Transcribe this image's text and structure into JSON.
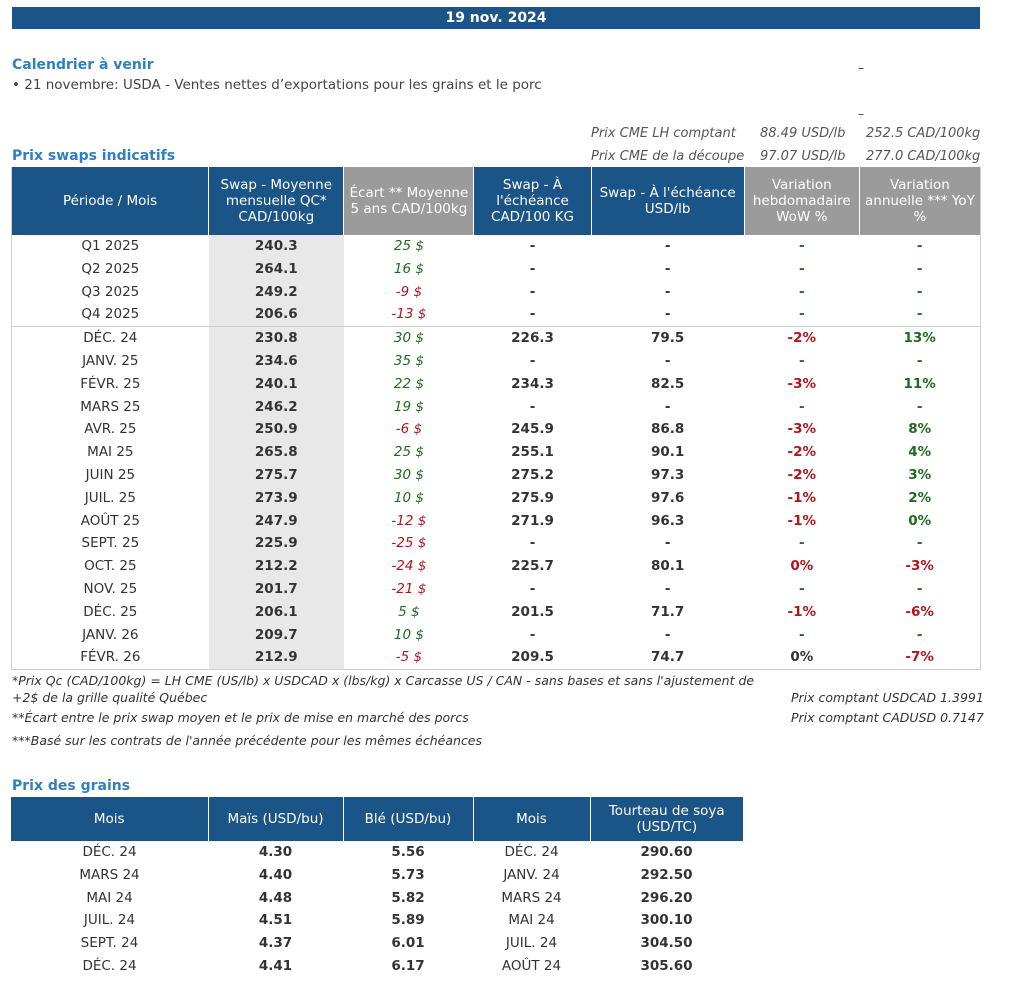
{
  "date": "19 nov. 2024",
  "calendar": {
    "title": "Calendrier à venir",
    "items": [
      "• 21 novembre: USDA - Ventes nettes d’exportations pour les grains et le porc"
    ],
    "dash1": "–",
    "dash2": "–"
  },
  "cme": {
    "rows": [
      {
        "label": "Prix CME LH comptant",
        "usd": "88.49 USD/lb",
        "cad": "252.5 CAD/100kg"
      },
      {
        "label": "Prix CME de la découpe",
        "usd": "97.07 USD/lb",
        "cad": "277.0 CAD/100kg"
      }
    ]
  },
  "swaps": {
    "title": "Prix swaps indicatifs",
    "headers": [
      "Période / Mois",
      "Swap - Moyenne mensuelle QC* CAD/100kg",
      "Écart ** Moyenne 5 ans CAD/100kg",
      "Swap - À l'échéance CAD/100 KG",
      "Swap - À l'échéance USD/lb",
      "Variation hebdomadaire WoW %",
      "Variation annuelle *** YoY %"
    ],
    "quarters": [
      {
        "period": "Q1 2025",
        "swap": "240.3",
        "ecart": "25 $",
        "ecart_sign": "pos",
        "cad": "-",
        "usd": "-",
        "wow": "-",
        "wow_sign": "pos",
        "yoy": "-",
        "yoy_sign": "pos"
      },
      {
        "period": "Q2 2025",
        "swap": "264.1",
        "ecart": "16 $",
        "ecart_sign": "pos",
        "cad": "-",
        "usd": "-",
        "wow": "-",
        "wow_sign": "pos",
        "yoy": "-",
        "yoy_sign": "pos"
      },
      {
        "period": "Q3 2025",
        "swap": "249.2",
        "ecart": "-9 $",
        "ecart_sign": "neg",
        "cad": "-",
        "usd": "-",
        "wow": "-",
        "wow_sign": "pos",
        "yoy": "-",
        "yoy_sign": "pos"
      },
      {
        "period": "Q4 2025",
        "swap": "206.6",
        "ecart": "-13 $",
        "ecart_sign": "neg",
        "cad": "-",
        "usd": "-",
        "wow": "-",
        "wow_sign": "pos",
        "yoy": "-",
        "yoy_sign": "pos"
      }
    ],
    "months": [
      {
        "period": "DÉC. 24",
        "swap": "230.8",
        "ecart": "30 $",
        "ecart_sign": "pos",
        "cad": "226.3",
        "usd": "79.5",
        "wow": "-2%",
        "wow_sign": "neg",
        "yoy": "13%",
        "yoy_sign": "pos"
      },
      {
        "period": "JANV. 25",
        "swap": "234.6",
        "ecart": "35 $",
        "ecart_sign": "pos",
        "cad": "-",
        "usd": "-",
        "wow": "-",
        "wow_sign": "pos",
        "yoy": "-",
        "yoy_sign": "pos"
      },
      {
        "period": "FÉVR. 25",
        "swap": "240.1",
        "ecart": "22 $",
        "ecart_sign": "pos",
        "cad": "234.3",
        "usd": "82.5",
        "wow": "-3%",
        "wow_sign": "neg",
        "yoy": "11%",
        "yoy_sign": "pos"
      },
      {
        "period": "MARS 25",
        "swap": "246.2",
        "ecart": "19 $",
        "ecart_sign": "pos",
        "cad": "-",
        "usd": "-",
        "wow": "-",
        "wow_sign": "pos",
        "yoy": "-",
        "yoy_sign": "pos"
      },
      {
        "period": "AVR. 25",
        "swap": "250.9",
        "ecart": "-6 $",
        "ecart_sign": "neg",
        "cad": "245.9",
        "usd": "86.8",
        "wow": "-3%",
        "wow_sign": "neg",
        "yoy": "8%",
        "yoy_sign": "pos"
      },
      {
        "period": "MAI 25",
        "swap": "265.8",
        "ecart": "25 $",
        "ecart_sign": "pos",
        "cad": "255.1",
        "usd": "90.1",
        "wow": "-2%",
        "wow_sign": "neg",
        "yoy": "4%",
        "yoy_sign": "pos"
      },
      {
        "period": "JUIN 25",
        "swap": "275.7",
        "ecart": "30 $",
        "ecart_sign": "pos",
        "cad": "275.2",
        "usd": "97.3",
        "wow": "-2%",
        "wow_sign": "neg",
        "yoy": "3%",
        "yoy_sign": "pos"
      },
      {
        "period": "JUIL. 25",
        "swap": "273.9",
        "ecart": "10 $",
        "ecart_sign": "pos",
        "cad": "275.9",
        "usd": "97.6",
        "wow": "-1%",
        "wow_sign": "neg",
        "yoy": "2%",
        "yoy_sign": "pos"
      },
      {
        "period": "AOÛT 25",
        "swap": "247.9",
        "ecart": "-12 $",
        "ecart_sign": "neg",
        "cad": "271.9",
        "usd": "96.3",
        "wow": "-1%",
        "wow_sign": "neg",
        "yoy": "0%",
        "yoy_sign": "pos"
      },
      {
        "period": "SEPT. 25",
        "swap": "225.9",
        "ecart": "-25 $",
        "ecart_sign": "neg",
        "cad": "-",
        "usd": "-",
        "wow": "-",
        "wow_sign": "pos",
        "yoy": "-",
        "yoy_sign": "pos"
      },
      {
        "period": "OCT. 25",
        "swap": "212.2",
        "ecart": "-24 $",
        "ecart_sign": "neg",
        "cad": "225.7",
        "usd": "80.1",
        "wow": "0%",
        "wow_sign": "neg",
        "yoy": "-3%",
        "yoy_sign": "neg"
      },
      {
        "period": "NOV. 25",
        "swap": "201.7",
        "ecart": "-21 $",
        "ecart_sign": "neg",
        "cad": "-",
        "usd": "-",
        "wow": "-",
        "wow_sign": "pos",
        "yoy": "-",
        "yoy_sign": "pos"
      },
      {
        "period": "DÉC. 25",
        "swap": "206.1",
        "ecart": "5 $",
        "ecart_sign": "pos",
        "cad": "201.5",
        "usd": "71.7",
        "wow": "-1%",
        "wow_sign": "neg",
        "yoy": "-6%",
        "yoy_sign": "neg"
      },
      {
        "period": "JANV. 26",
        "swap": "209.7",
        "ecart": "10 $",
        "ecart_sign": "pos",
        "cad": "-",
        "usd": "-",
        "wow": "-",
        "wow_sign": "pos",
        "yoy": "-",
        "yoy_sign": "pos"
      },
      {
        "period": "FÉVR. 26",
        "swap": "212.9",
        "ecart": "-5 $",
        "ecart_sign": "neg",
        "cad": "209.5",
        "usd": "74.7",
        "wow": "0%",
        "wow_sign": "neu",
        "yoy": "-7%",
        "yoy_sign": "neg"
      }
    ]
  },
  "notes": {
    "note1_line1": "*Prix Qc (CAD/100kg) = LH CME (US/lb) x USDCAD x (lbs/kg) x Carcasse US / CAN - sans bases et sans l'ajustement de",
    "note1_line2": "+2$ de la grille qualité Québec",
    "note2": "**Écart entre le prix swap moyen et le prix de mise en marché des porcs",
    "note3": "***Basé sur les contrats de l'année précédente pour les mêmes échéances",
    "fx1": "Prix comptant USDCAD 1.3991",
    "fx2": "Prix comptant CADUSD 0.7147"
  },
  "grains": {
    "title": "Prix des grains",
    "headers": [
      "Mois",
      "Maïs (USD/bu)",
      "Blé (USD/bu)",
      "Mois",
      "Tourteau de soya (USD/TC)"
    ],
    "rows": [
      {
        "mois": "DÉC. 24",
        "mais": "4.30",
        "ble": "5.56",
        "mois2": "DÉC. 24",
        "soya": "290.60"
      },
      {
        "mois": "MARS 24",
        "mais": "4.40",
        "ble": "5.73",
        "mois2": "JANV. 24",
        "soya": "292.50"
      },
      {
        "mois": "MAI 24",
        "mais": "4.48",
        "ble": "5.82",
        "mois2": "MARS 24",
        "soya": "296.20"
      },
      {
        "mois": "JUIL. 24",
        "mais": "4.51",
        "ble": "5.89",
        "mois2": "MAI 24",
        "soya": "300.10"
      },
      {
        "mois": "SEPT. 24",
        "mais": "4.37",
        "ble": "6.01",
        "mois2": "JUIL. 24",
        "soya": "304.50"
      },
      {
        "mois": "DÉC. 24",
        "mais": "4.41",
        "ble": "6.17",
        "mois2": "AOÛT 24",
        "soya": "305.60"
      }
    ]
  },
  "colors": {
    "header_blue": "#1b5487",
    "header_gray": "#9b9b9b",
    "positive": "#1f6b1f",
    "negative": "#b0151b",
    "title_blue": "#2f7fc1"
  }
}
